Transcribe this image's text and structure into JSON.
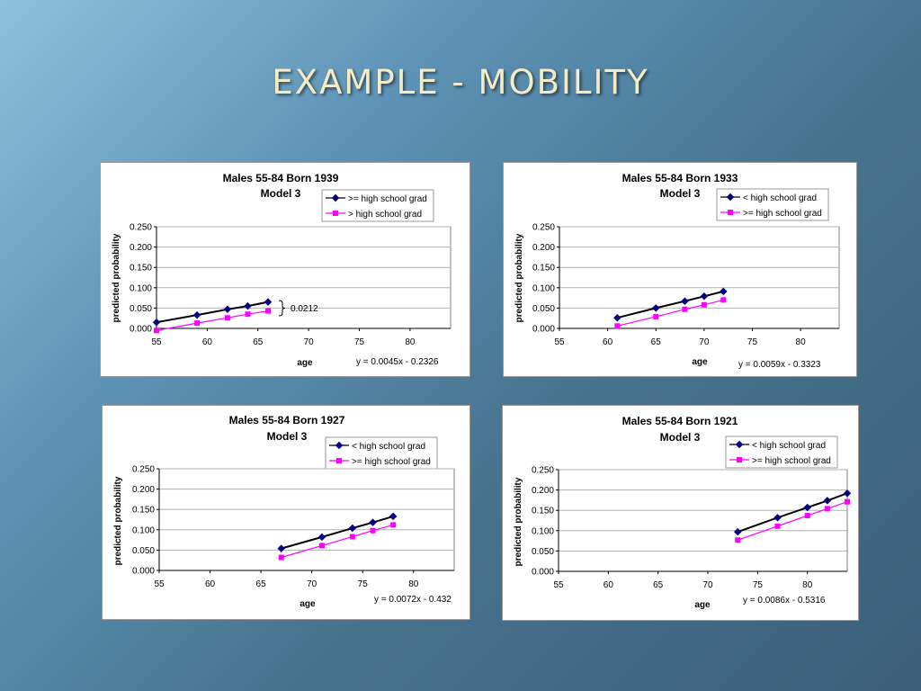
{
  "slide": {
    "title": "EXAMPLE - MOBILITY"
  },
  "colors": {
    "series1": "#000080",
    "series1_line": "#000000",
    "series2": "#ff00ff"
  },
  "chart_data": [
    {
      "type": "line",
      "title": "Males 55-84  Born 1939",
      "subtitle": "Model 3",
      "xlabel": "age",
      "ylabel": "predicted probability",
      "xlim": [
        55,
        84
      ],
      "ylim": [
        0,
        0.25
      ],
      "xticks": [
        "55",
        "60",
        "65",
        "70",
        "75",
        "80"
      ],
      "yticks": [
        "0.250",
        "0.200",
        "0.150",
        "0.100",
        "0.050",
        "0.000"
      ],
      "legend": "top-right",
      "equation": "y = 0.0045x - 0.2326",
      "annotation": "0.0212",
      "series": [
        {
          "name": ">= high school grad",
          "x": [
            55,
            59,
            62,
            64,
            66
          ],
          "y": [
            0.015,
            0.033,
            0.047,
            0.055,
            0.065
          ]
        },
        {
          "name": "> high school grad",
          "x": [
            55,
            59,
            62,
            64,
            66
          ],
          "y": [
            -0.005,
            0.013,
            0.026,
            0.035,
            0.043
          ]
        }
      ]
    },
    {
      "type": "line",
      "title": "Males 55-84 Born 1933",
      "subtitle": "Model 3",
      "xlabel": "age",
      "ylabel": "predicted probability",
      "xlim": [
        55,
        84
      ],
      "ylim": [
        0,
        0.25
      ],
      "xticks": [
        "55",
        "60",
        "65",
        "70",
        "75",
        "80"
      ],
      "yticks": [
        "0.250",
        "0.200",
        "0.150",
        "0.100",
        "0.050",
        "0.000"
      ],
      "legend": "top-right",
      "equation": "y = 0.0059x - 0.3323",
      "series": [
        {
          "name": "< high school grad",
          "x": [
            61,
            65,
            68,
            70,
            72
          ],
          "y": [
            0.026,
            0.05,
            0.067,
            0.079,
            0.091
          ]
        },
        {
          "name": ">= high school grad",
          "x": [
            61,
            65,
            68,
            70,
            72
          ],
          "y": [
            0.006,
            0.029,
            0.047,
            0.058,
            0.07
          ]
        }
      ]
    },
    {
      "type": "line",
      "title": "Males 55-84 Born 1927",
      "subtitle": "Model 3",
      "xlabel": "age",
      "ylabel": "predicted probability",
      "xlim": [
        55,
        84
      ],
      "ylim": [
        0,
        0.25
      ],
      "xticks": [
        "55",
        "60",
        "65",
        "70",
        "75",
        "80"
      ],
      "yticks": [
        "0.250",
        "0.200",
        "0.150",
        "0.100",
        "0.050",
        "0.000"
      ],
      "legend": "top-right",
      "equation": "y = 0.0072x - 0.432",
      "series": [
        {
          "name": "< high school grad",
          "x": [
            67,
            71,
            74,
            76,
            78
          ],
          "y": [
            0.054,
            0.082,
            0.104,
            0.118,
            0.133
          ]
        },
        {
          "name": ">= high school grad",
          "x": [
            67,
            71,
            74,
            76,
            78
          ],
          "y": [
            0.032,
            0.061,
            0.083,
            0.098,
            0.112
          ]
        }
      ]
    },
    {
      "type": "line",
      "title": "Males 55-84 Born 1921",
      "subtitle": "Model 3",
      "xlabel": "age",
      "ylabel": "predicted probability",
      "xlim": [
        55,
        84
      ],
      "ylim": [
        0,
        0.25
      ],
      "xticks": [
        "55",
        "60",
        "65",
        "70",
        "75",
        "80"
      ],
      "yticks": [
        "0.250",
        "0.200",
        "0.150",
        "0.100",
        "0.050",
        "0.000"
      ],
      "legend": "top-right",
      "equation": "y = 0.0086x - 0.5316",
      "series": [
        {
          "name": "< high school grad",
          "x": [
            73,
            77,
            80,
            82,
            84
          ],
          "y": [
            0.097,
            0.132,
            0.157,
            0.174,
            0.192
          ]
        },
        {
          "name": ">= high school grad",
          "x": [
            73,
            77,
            80,
            82,
            84
          ],
          "y": [
            0.077,
            0.111,
            0.137,
            0.154,
            0.171
          ]
        }
      ]
    }
  ]
}
